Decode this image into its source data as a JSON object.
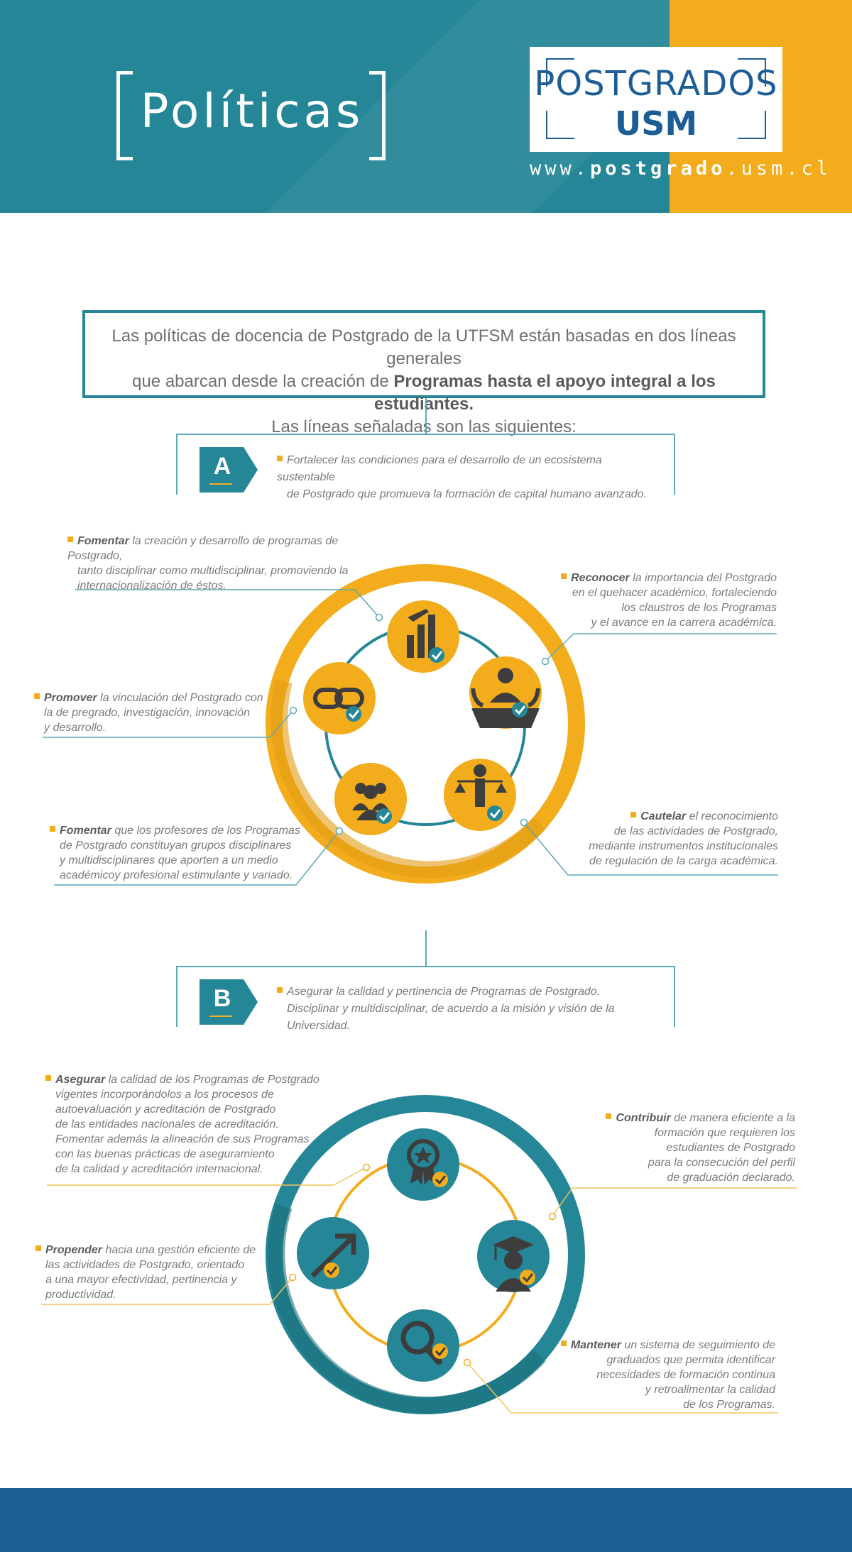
{
  "header": {
    "title": "Políticas",
    "logo_line1": "POSTGRADOS",
    "logo_line2": "USM",
    "url_prefix": "www.",
    "url_bold": "postgrado",
    "url_suffix": ".usm.cl"
  },
  "intro": {
    "line1": "Las políticas de docencia de Postgrado de la UTFSM están basadas en dos líneas generales",
    "line2_plain": "que abarcan desde la creación de ",
    "line2_bold": "Programas hasta el apoyo integral a los estudiantes.",
    "line3": "Las líneas señaladas son las siguientes:"
  },
  "section_a": {
    "letter": "A",
    "line1": "Fortalecer las condiciones para el desarrollo de un ecosistema sustentable",
    "line2": "de Postgrado que promueva la formación de capital humano avanzado.",
    "notes": [
      {
        "keyword": "Fomentar",
        "text1": " la creación y desarrollo de programas de Postgrado,",
        "text2": "tanto disciplinar como multidisciplinar, promoviendo la",
        "text3": "internacionalización de éstos."
      },
      {
        "keyword": "Reconocer",
        "text1": " la importancia del Postgrado",
        "text2": "en el quehacer académico, fortaleciendo",
        "text3": "los claustros de los Programas",
        "text4": "y el avance en la carrera académica."
      },
      {
        "keyword": "Promover",
        "text1": " la vinculación del Postgrado con",
        "text2": "la de pregrado, investigación, innovación",
        "text3": "y desarrollo."
      },
      {
        "keyword": "Fomentar",
        "text1": " que los profesores de los Programas",
        "text2": "de Postgrado constituyan grupos disciplinares",
        "text3": "y multidisciplinares que aporten a un medio",
        "text4": "académicoy profesional estimulante y variado."
      },
      {
        "keyword": "Cautelar",
        "text1": " el reconocimiento",
        "text2": "de las actividades de Postgrado,",
        "text3": "mediante instrumentos institucionales",
        "text4": "de regulación de la carga académica."
      }
    ],
    "icons": [
      "plane-chart-icon",
      "presenter-icon",
      "balance-person-icon",
      "group-icon",
      "link-icon"
    ]
  },
  "section_b": {
    "letter": "B",
    "line1": "Asegurar la calidad y pertinencia de Programas de Postgrado.",
    "line2": "Disciplinar y multidisciplinar, de acuerdo a la misión y visión de la Universidad.",
    "notes": [
      {
        "keyword": "Asegurar",
        "text1": " la calidad de los Programas de Postgrado",
        "text2": "vigentes incorporándolos a los procesos de",
        "text3": "autoevaluación y acreditación de Postgrado",
        "text4": "de las entidades nacionales de acreditación.",
        "text5": "Fomentar además la alineación de sus Programas",
        "text6": "con las buenas prácticas de aseguramiento",
        "text7": "de la calidad y acreditación internacional."
      },
      {
        "keyword": "Contribuir",
        "text1": " de manera eficiente a la",
        "text2": "formación que requieren los",
        "text3": "estudiantes de Postgrado",
        "text4": "para la consecución del perfil",
        "text5": "de graduación declarado."
      },
      {
        "keyword": "Propender",
        "text1": " hacia una gestión eficiente de",
        "text2": "las actividades de Postgrado, orientado",
        "text3": "a una mayor efectividad, pertinencia y",
        "text4": "productividad."
      },
      {
        "keyword": "Mantener",
        "text1": " un sistema de seguimiento de",
        "text2": "graduados que permita identificar",
        "text3": "necesidades de formación continua",
        "text4": "y retroalimentar la calidad",
        "text5": "de los Programas."
      }
    ],
    "icons": [
      "medal-icon",
      "graduate-icon",
      "magnifier-icon",
      "growth-arrow-icon"
    ]
  },
  "colors": {
    "teal": "#248696",
    "orange": "#f2ac1c",
    "navy": "#1c5d96",
    "gray_text": "#7a7a7a"
  }
}
